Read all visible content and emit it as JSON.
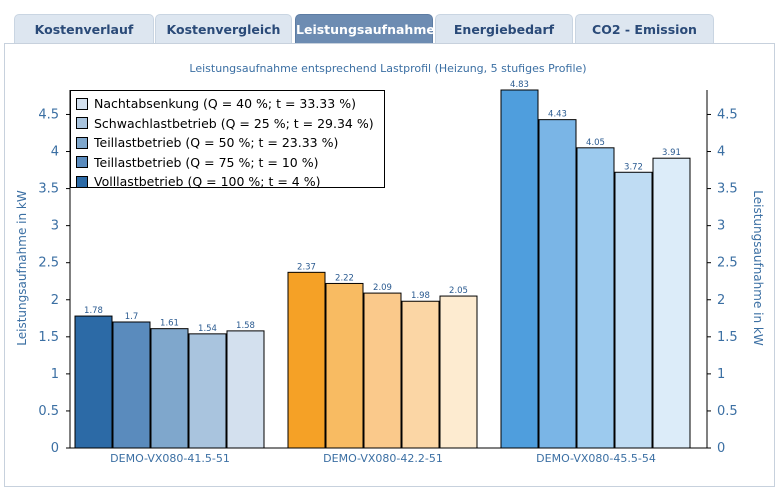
{
  "tabs": [
    {
      "label": "Kostenverlauf",
      "active": false
    },
    {
      "label": "Kostenvergleich",
      "active": false
    },
    {
      "label": "Leistungsaufnahme",
      "active": true
    },
    {
      "label": "Energiebedarf",
      "active": false
    },
    {
      "label": "CO2 - Emission",
      "active": false
    }
  ],
  "chart_data": {
    "type": "bar",
    "title": "Leistungsaufnahme entsprechend Lastprofil (Heizung, 5 stufiges Profile)",
    "ylabel": "Leistungsaufnahme in kW",
    "ylabel_right": "Leistungsaufnahme in kW",
    "ylim": [
      0,
      4.83
    ],
    "yticks": [
      "0",
      "0.5",
      "1",
      "1.5",
      "2",
      "2.5",
      "3",
      "3.5",
      "4",
      "4.5"
    ],
    "grid": false,
    "legend_position": "top-left",
    "categories": [
      "DEMO-VX080-41.5-51",
      "DEMO-VX080-42.2-51",
      "DEMO-VX080-45.5-54"
    ],
    "series": [
      {
        "name": "Volllastbetrieb (Q = 100 %; t = 4 %)",
        "values": [
          1.78,
          2.37,
          4.83
        ],
        "value_labels": [
          "1.78",
          "2.37",
          "4.83"
        ]
      },
      {
        "name": "Teillastbetrieb (Q = 75 %; t = 10 %)",
        "values": [
          1.7,
          2.22,
          4.43
        ],
        "value_labels": [
          "1.7",
          "2.22",
          "4.43"
        ]
      },
      {
        "name": "Teillastbetrieb (Q = 50 %; t = 23.33 %)",
        "values": [
          1.61,
          2.09,
          4.05
        ],
        "value_labels": [
          "1.61",
          "2.09",
          "4.05"
        ]
      },
      {
        "name": "Schwachlastbetrieb (Q = 25 %; t = 29.34 %)",
        "values": [
          1.54,
          1.98,
          3.72
        ],
        "value_labels": [
          "1.54",
          "1.98",
          "3.72"
        ]
      },
      {
        "name": "Nachtabsenkung (Q = 40 %; t = 33.33 %)",
        "values": [
          1.58,
          2.05,
          3.91
        ],
        "value_labels": [
          "1.58",
          "2.05",
          "3.91"
        ]
      }
    ],
    "legend_order": [
      4,
      3,
      2,
      1,
      0
    ],
    "colors": [
      [
        "#2c6aa6",
        "#5a8bbd",
        "#7fa7cc",
        "#a9c4de",
        "#d3e0ee"
      ],
      [
        "#f5a126",
        "#f8bb62",
        "#fac98b",
        "#fbd6a5",
        "#fdebd0"
      ],
      [
        "#4f9edd",
        "#7ab5e6",
        "#9ccaee",
        "#bfdcf3",
        "#dcecf9"
      ]
    ],
    "legend_colors": [
      "#d3e0ee",
      "#a9c4de",
      "#7fa7cc",
      "#5a8bbd",
      "#2c6aa6"
    ]
  }
}
